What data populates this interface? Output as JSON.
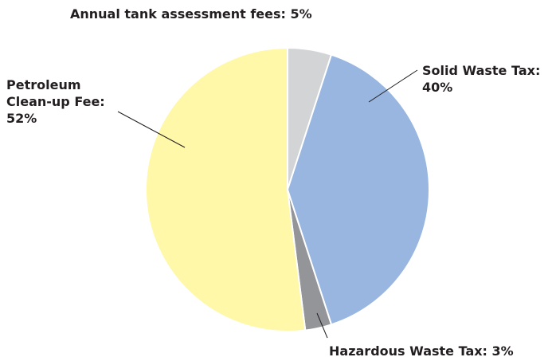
{
  "chart_data": {
    "type": "pie",
    "categories": [
      "Annual tank assessment fees:",
      "Solid Waste Tax:",
      "Hazardous Waste Tax:",
      "Petroleum Clean-up Fee:"
    ],
    "values": [
      5,
      40,
      3,
      52
    ],
    "value_labels": [
      "5%",
      "40%",
      "3%",
      "52%"
    ],
    "colors": [
      "#d3d4d6",
      "#98b6e0",
      "#939598",
      "#fff8a8"
    ]
  }
}
